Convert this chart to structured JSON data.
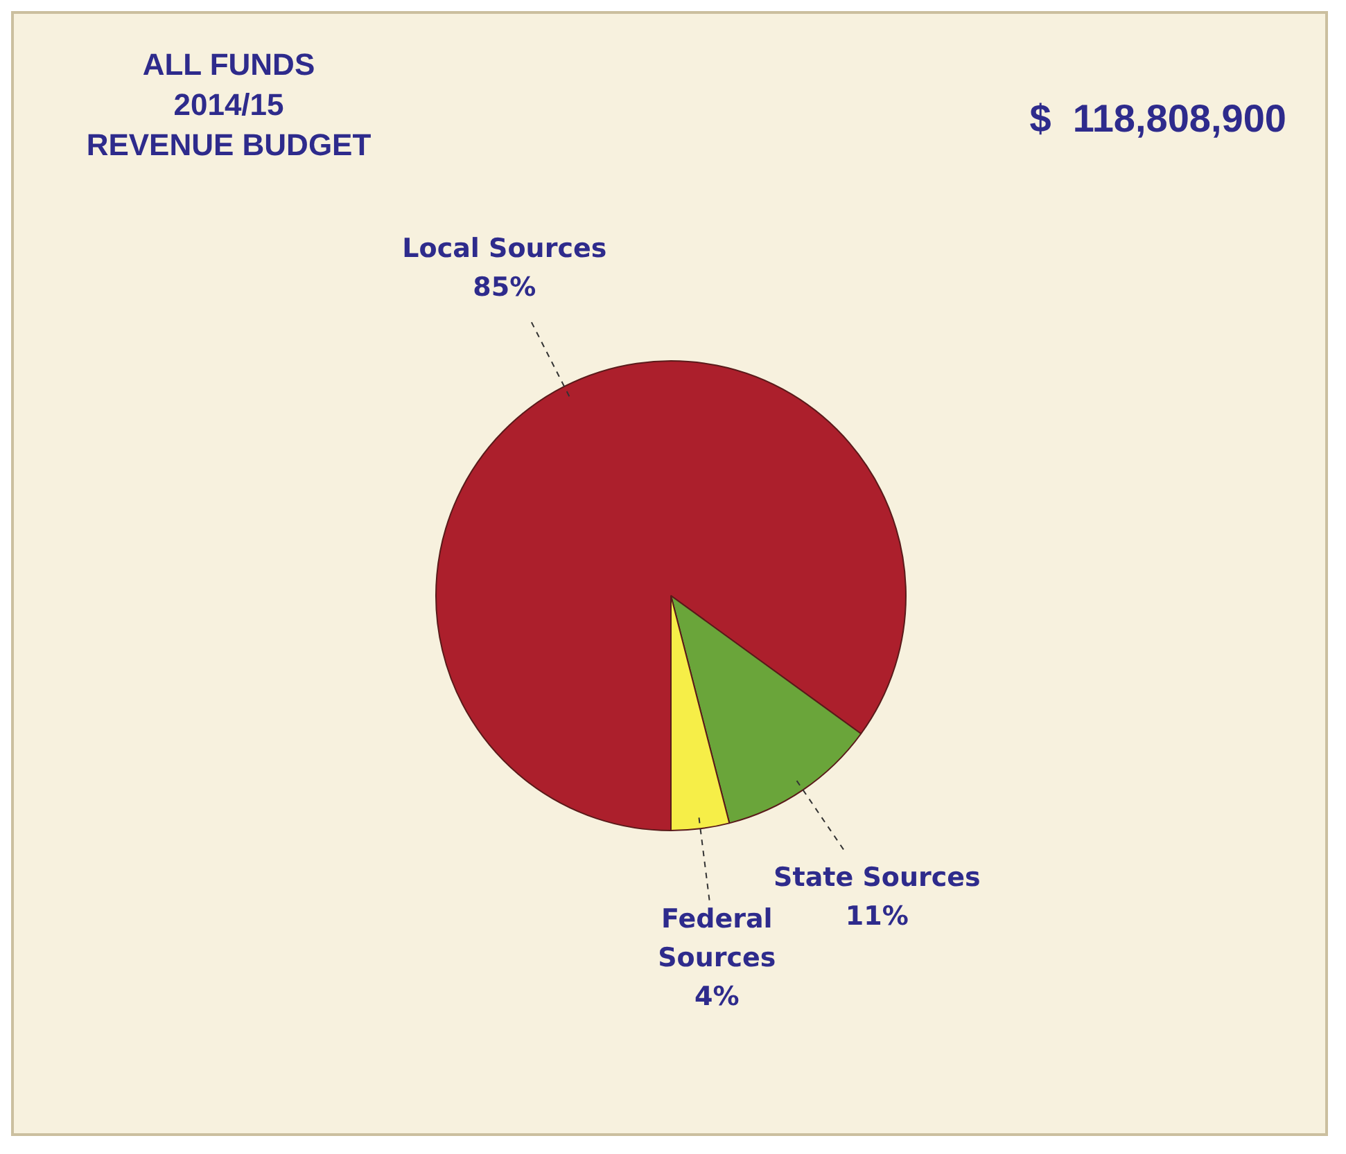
{
  "chart_data": {
    "type": "pie",
    "title": "ALL FUNDS\n2014/15\nREVENUE BUDGET",
    "annotations": [
      "$  118,808,900"
    ],
    "categories": [
      "Local Sources",
      "State Sources",
      "Federal Sources"
    ],
    "values": [
      85,
      11,
      4
    ],
    "colors": [
      "#ac1f2c",
      "#6aa53a",
      "#f6ee48"
    ],
    "value_labels": [
      "85%",
      "11%",
      "4%"
    ],
    "legend": false
  }
}
